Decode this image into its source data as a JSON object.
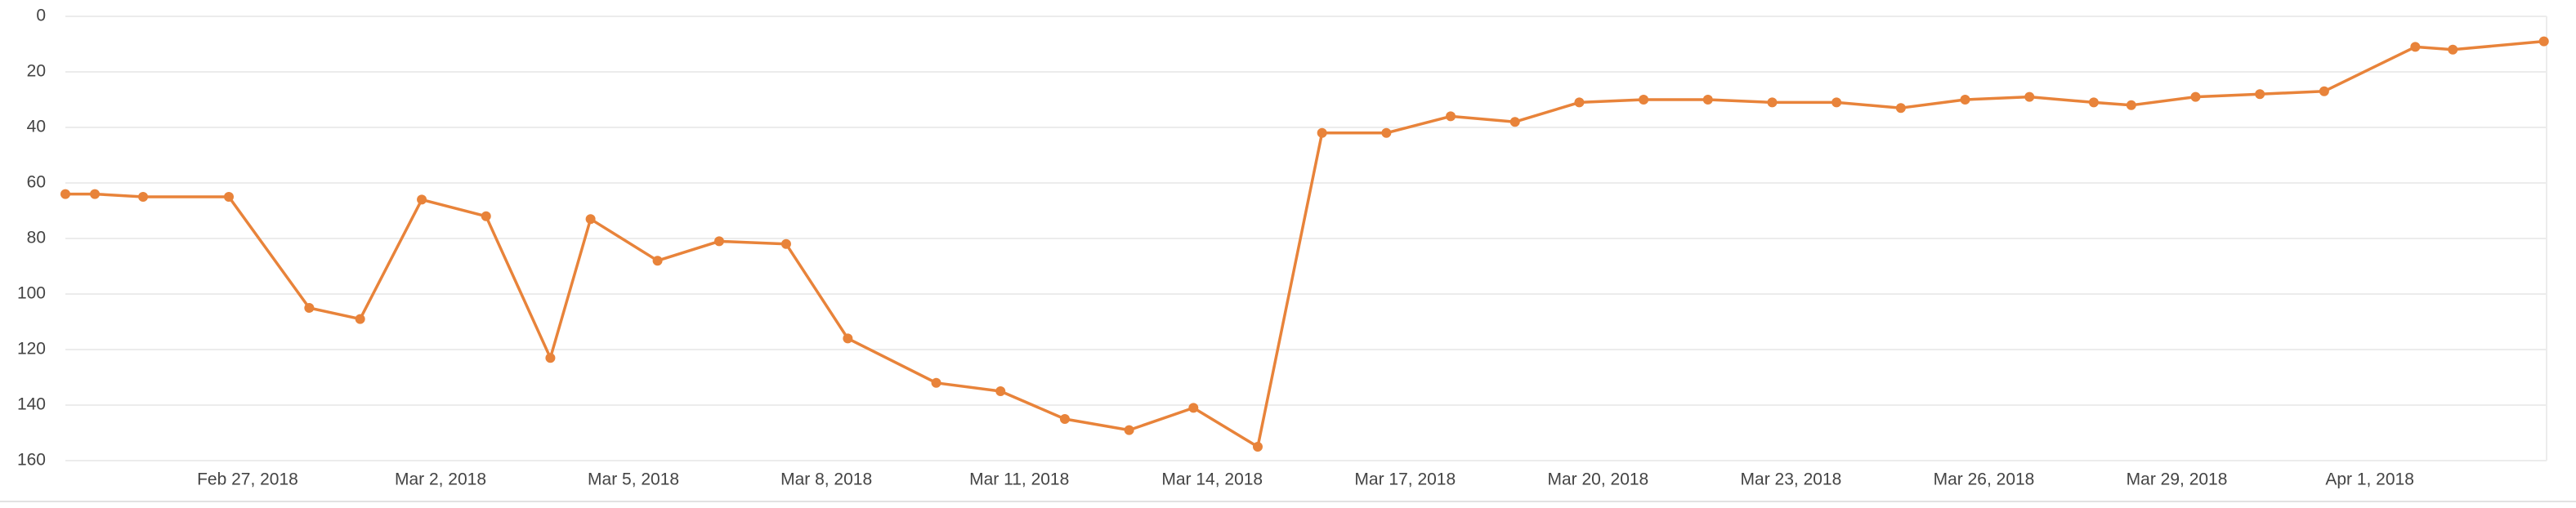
{
  "chart_data": {
    "type": "line",
    "x": [
      "2018-02-24T04:00",
      "2018-02-24T15:00",
      "2018-02-25T09:00",
      "2018-02-26T17:00",
      "2018-02-27T23:00",
      "2018-02-28T18:00",
      "2018-03-01T17:00",
      "2018-03-02T17:00",
      "2018-03-03T17:00",
      "2018-03-04T08:00",
      "2018-03-05T09:00",
      "2018-03-06T08:00",
      "2018-03-07T09:00",
      "2018-03-08T08:00",
      "2018-03-09T17:00",
      "2018-03-10T17:00",
      "2018-03-11T17:00",
      "2018-03-12T17:00",
      "2018-03-13T17:00",
      "2018-03-14T17:00",
      "2018-03-15T17:00",
      "2018-03-16T17:00",
      "2018-03-17T17:00",
      "2018-03-18T17:00",
      "2018-03-19T17:00",
      "2018-03-20T17:00",
      "2018-03-21T17:00",
      "2018-03-22T17:00",
      "2018-03-23T17:00",
      "2018-03-24T17:00",
      "2018-03-25T17:00",
      "2018-03-26T17:00",
      "2018-03-27T17:00",
      "2018-03-28T07:00",
      "2018-03-29T07:00",
      "2018-03-30T07:00",
      "2018-03-31T07:00",
      "2018-04-01T17:00",
      "2018-04-02T07:00",
      "2018-04-03T17:00"
    ],
    "values": [
      64,
      64,
      65,
      65,
      105,
      109,
      66,
      72,
      123,
      73,
      88,
      81,
      82,
      116,
      132,
      135,
      145,
      149,
      141,
      155,
      42,
      42,
      36,
      38,
      31,
      30,
      30,
      31,
      31,
      33,
      30,
      29,
      31,
      32,
      29,
      28,
      27,
      11,
      12,
      9
    ],
    "color": "#e8833a",
    "xlim": [
      "2018-02-24T04:00",
      "2018-04-03T18:00"
    ],
    "xticks": [
      {
        "value": "2018-02-27T00:00",
        "label": "Feb 27, 2018"
      },
      {
        "value": "2018-03-02T00:00",
        "label": "Mar 2, 2018"
      },
      {
        "value": "2018-03-05T00:00",
        "label": "Mar 5, 2018"
      },
      {
        "value": "2018-03-08T00:00",
        "label": "Mar 8, 2018"
      },
      {
        "value": "2018-03-11T00:00",
        "label": "Mar 11, 2018"
      },
      {
        "value": "2018-03-14T00:00",
        "label": "Mar 14, 2018"
      },
      {
        "value": "2018-03-17T00:00",
        "label": "Mar 17, 2018"
      },
      {
        "value": "2018-03-20T00:00",
        "label": "Mar 20, 2018"
      },
      {
        "value": "2018-03-23T00:00",
        "label": "Mar 23, 2018"
      },
      {
        "value": "2018-03-26T00:00",
        "label": "Mar 26, 2018"
      },
      {
        "value": "2018-03-29T00:00",
        "label": "Mar 29, 2018"
      },
      {
        "value": "2018-04-01T00:00",
        "label": "Apr 1, 2018"
      }
    ],
    "ylim": [
      160,
      0
    ],
    "yticks": [
      0,
      20,
      40,
      60,
      80,
      100,
      120,
      140,
      160
    ],
    "grid": true
  }
}
